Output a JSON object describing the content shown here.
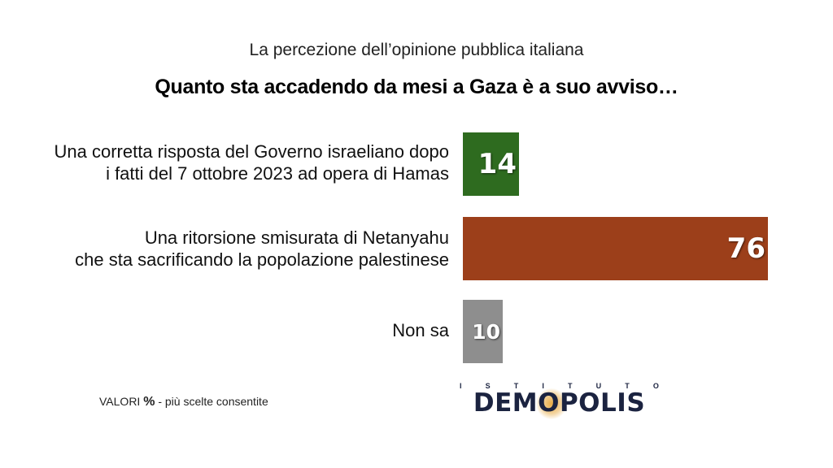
{
  "header": {
    "subtitle": "La percezione dell’opinione pubblica italiana",
    "title": "Quanto sta accadendo da mesi a Gaza è a suo avviso…"
  },
  "chart_data": {
    "type": "bar",
    "orientation": "horizontal",
    "categories": [
      [
        "Una corretta risposta del Governo israeliano dopo",
        "i fatti del 7 ottobre 2023 ad opera di Hamas"
      ],
      [
        "Una ritorsione smisurata di Netanyahu",
        "che sta sacrificando la popolazione palestinese"
      ],
      [
        "Non sa"
      ]
    ],
    "values": [
      14,
      76,
      10
    ],
    "colors": [
      "#2e6b1f",
      "#9c3f1a",
      "#8e8e8e"
    ],
    "xlim": [
      0,
      76
    ],
    "grid": false,
    "legend": "none"
  },
  "footer": {
    "note_prefix": "VALORI",
    "note_symbol": "%",
    "note_suffix": "- più scelte consentite",
    "logo_top_letters": [
      "I",
      "S",
      "T",
      "I",
      "T",
      "U",
      "T",
      "O"
    ],
    "logo_name": "DEMOPOLIS"
  }
}
